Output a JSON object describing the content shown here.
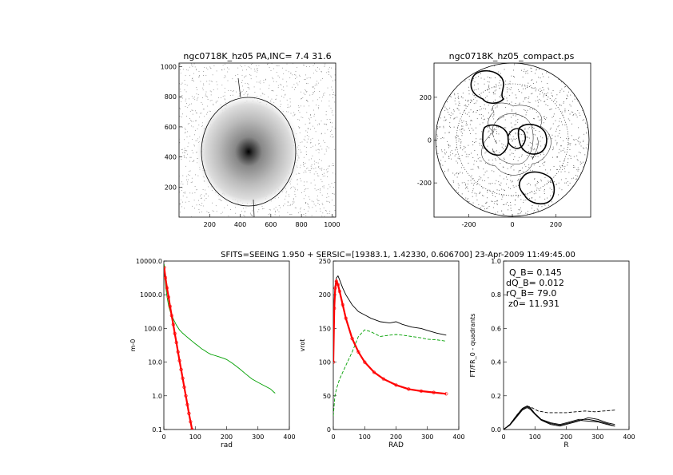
{
  "panels": {
    "image": {
      "title": "ngc0718K_hz05 PA,INC=  7.4 31.6",
      "xticks": [
        200,
        400,
        600,
        800,
        1000
      ],
      "yticks": [
        200,
        400,
        600,
        800,
        1000
      ],
      "xlim": [
        0,
        1024
      ],
      "ylim": [
        0,
        1024
      ]
    },
    "compact": {
      "title": "ngc0718K_hz05_compact.ps",
      "xticks": [
        -200,
        0,
        200
      ],
      "yticks": [
        -200,
        0,
        200
      ],
      "xlim": [
        -360,
        360
      ],
      "ylim": [
        -360,
        360
      ]
    },
    "header": "SFITS=SEEING 1.950 + SERSIC=[19383.1, 1.42330, 0.606700]  23-Apr-2009 11:49:45.00"
  },
  "chart_data": [
    {
      "type": "line",
      "scale": "log-y",
      "xlabel": "rad",
      "ylabel": "m-0",
      "xlim": [
        0,
        400
      ],
      "ylim": [
        0.1,
        10000
      ],
      "xticks": [
        0,
        100,
        200,
        300,
        400
      ],
      "ytick_labels": [
        "10000.0",
        "1000.0",
        "100.0",
        "10.0",
        "1.0",
        "0.1"
      ],
      "series": [
        {
          "color": "#00a000",
          "x": [
            1,
            3,
            6,
            10,
            15,
            20,
            30,
            40,
            50,
            60,
            70,
            80,
            90,
            100,
            110,
            120,
            130,
            140,
            150,
            160,
            170,
            180,
            190,
            200,
            220,
            240,
            260,
            280,
            300,
            320,
            340,
            350,
            355
          ],
          "y": [
            8000,
            3500,
            1700,
            900,
            480,
            330,
            190,
            125,
            90,
            72,
            60,
            50,
            42,
            35,
            30,
            25,
            22,
            19,
            17,
            16,
            15,
            14,
            13,
            12,
            9,
            6.5,
            4.5,
            3.2,
            2.5,
            2.0,
            1.6,
            1.3,
            1.2
          ]
        },
        {
          "color": "#ff0000",
          "x": [
            1,
            5,
            10,
            15,
            20,
            25,
            30,
            35,
            40,
            45,
            50,
            55,
            60,
            65,
            70,
            75,
            80,
            85,
            90
          ],
          "y": [
            6500,
            3200,
            1600,
            850,
            450,
            240,
            130,
            70,
            38,
            20,
            11,
            6,
            3.3,
            1.8,
            1.0,
            0.55,
            0.3,
            0.17,
            0.1
          ]
        }
      ]
    },
    {
      "type": "line",
      "xlabel": "RAD",
      "ylabel": "vrot",
      "xlim": [
        0,
        400
      ],
      "ylim": [
        0,
        250
      ],
      "xticks": [
        0,
        100,
        200,
        300,
        400
      ],
      "yticks": [
        0,
        50,
        100,
        150,
        200,
        250
      ],
      "series": [
        {
          "color": "#000000",
          "x": [
            0,
            3,
            6,
            10,
            15,
            20,
            30,
            40,
            60,
            80,
            100,
            120,
            150,
            180,
            200,
            220,
            250,
            280,
            300,
            330,
            360
          ],
          "y": [
            120,
            190,
            215,
            225,
            228,
            222,
            210,
            200,
            185,
            175,
            170,
            165,
            160,
            158,
            160,
            156,
            152,
            150,
            147,
            143,
            140
          ]
        },
        {
          "color": "#00a000",
          "dash": true,
          "x": [
            0,
            5,
            10,
            20,
            30,
            40,
            60,
            80,
            100,
            120,
            150,
            180,
            200,
            220,
            250,
            280,
            300,
            330,
            360
          ],
          "y": [
            20,
            50,
            60,
            75,
            85,
            95,
            115,
            138,
            148,
            145,
            138,
            140,
            141,
            140,
            138,
            136,
            134,
            133,
            131
          ]
        },
        {
          "color": "#ff0000",
          "x": [
            0,
            3,
            6,
            10,
            15,
            20,
            30,
            40,
            60,
            80,
            100,
            130,
            160,
            200,
            240,
            280,
            320,
            360
          ],
          "y": [
            100,
            180,
            210,
            220,
            215,
            205,
            185,
            165,
            135,
            115,
            100,
            85,
            75,
            66,
            60,
            57,
            55,
            53
          ]
        }
      ]
    },
    {
      "type": "line",
      "xlabel": "R",
      "ylabel": "FT/FR_0 - quadrants",
      "xlim": [
        0,
        400
      ],
      "ylim": [
        0,
        1
      ],
      "xticks": [
        0,
        100,
        200,
        300,
        400
      ],
      "yticks": [
        0,
        0.2,
        0.4,
        0.6,
        0.8,
        1.0
      ],
      "ytick_labels": [
        "0.0",
        "0.2",
        "0.4",
        "0.6",
        "0.8",
        "1.0"
      ],
      "annotations": [
        "Q_B=  0.145",
        "dQ_B=  0.012",
        "rQ_B=  79.0",
        "z0= 11.931"
      ],
      "series": [
        {
          "color": "#000000",
          "x": [
            0,
            20,
            40,
            60,
            75,
            85,
            100,
            120,
            150,
            180,
            210,
            240,
            270,
            300,
            330,
            355
          ],
          "y": [
            0.0,
            0.03,
            0.08,
            0.125,
            0.14,
            0.13,
            0.095,
            0.06,
            0.04,
            0.03,
            0.045,
            0.06,
            0.06,
            0.05,
            0.035,
            0.02
          ]
        },
        {
          "color": "#000000",
          "x": [
            0,
            20,
            40,
            60,
            75,
            85,
            100,
            120,
            150,
            180,
            210,
            240,
            270,
            300,
            330,
            355
          ],
          "y": [
            0.0,
            0.025,
            0.07,
            0.115,
            0.13,
            0.12,
            0.09,
            0.055,
            0.03,
            0.02,
            0.035,
            0.05,
            0.07,
            0.06,
            0.04,
            0.03
          ]
        },
        {
          "color": "#000000",
          "x": [
            0,
            20,
            40,
            60,
            75,
            85,
            100,
            120,
            150,
            180,
            210,
            240,
            270,
            300,
            330,
            355
          ],
          "y": [
            0.0,
            0.028,
            0.075,
            0.12,
            0.135,
            0.125,
            0.092,
            0.058,
            0.035,
            0.025,
            0.04,
            0.055,
            0.05,
            0.045,
            0.03,
            0.02
          ]
        },
        {
          "color": "#000000",
          "dash": true,
          "x": [
            0,
            20,
            40,
            60,
            75,
            90,
            110,
            140,
            170,
            200,
            230,
            260,
            290,
            320,
            355
          ],
          "y": [
            0.0,
            0.03,
            0.08,
            0.125,
            0.14,
            0.13,
            0.11,
            0.1,
            0.1,
            0.1,
            0.105,
            0.11,
            0.105,
            0.11,
            0.115
          ]
        }
      ]
    }
  ]
}
